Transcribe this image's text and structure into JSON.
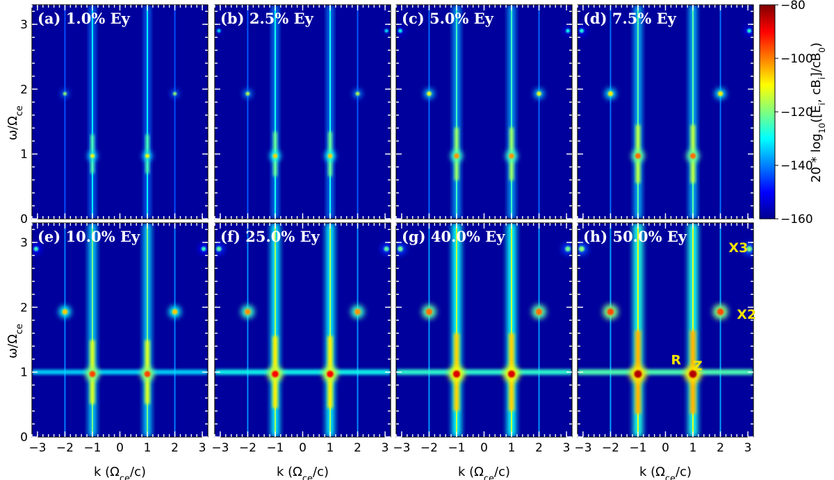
{
  "chart_data": {
    "type": "heatmap",
    "xlabel": "k (Ω_ce/c)",
    "ylabel": "ω/Ω_ce",
    "xlim": [
      -3.2,
      3.2
    ],
    "ylim": [
      0,
      3.3
    ],
    "xticks": [
      "−3",
      "−2",
      "−1",
      "0",
      "1",
      "2",
      "3"
    ],
    "yticks": [
      "0",
      "1",
      "2",
      "3"
    ],
    "colorbar": {
      "label": "20*log10([Ei, cBi]/cB0)",
      "range": [
        -160,
        -80
      ],
      "ticks": [
        "−80",
        "−100",
        "−120",
        "−140",
        "−160"
      ],
      "colormap": "jet"
    },
    "panels": [
      {
        "title": "(a) 1.0% Ey",
        "intensity": 0.2
      },
      {
        "title": "(b) 2.5% Ey",
        "intensity": 0.3
      },
      {
        "title": "(c) 5.0% Ey",
        "intensity": 0.45
      },
      {
        "title": "(d) 7.5% Ey",
        "intensity": 0.55
      },
      {
        "title": "(e) 10.0% Ey",
        "intensity": 0.65
      },
      {
        "title": "(f) 25.0% Ey",
        "intensity": 0.8
      },
      {
        "title": "(g) 40.0% Ey",
        "intensity": 0.9
      },
      {
        "title": "(h) 50.0% Ey",
        "intensity": 1.0
      }
    ],
    "annotations": [
      {
        "text": "X3",
        "k": 2.3,
        "omega": 2.85
      },
      {
        "text": "X2",
        "k": 2.6,
        "omega": 1.82
      },
      {
        "text": "R",
        "k": 0.2,
        "omega": 1.12
      },
      {
        "text": "Z",
        "k": 1.0,
        "omega": 1.03
      }
    ],
    "features": [
      {
        "name": "vertical lines",
        "k": [
          -1,
          1
        ]
      },
      {
        "name": "harmonic spots",
        "omega": [
          1,
          2,
          3
        ]
      }
    ]
  }
}
